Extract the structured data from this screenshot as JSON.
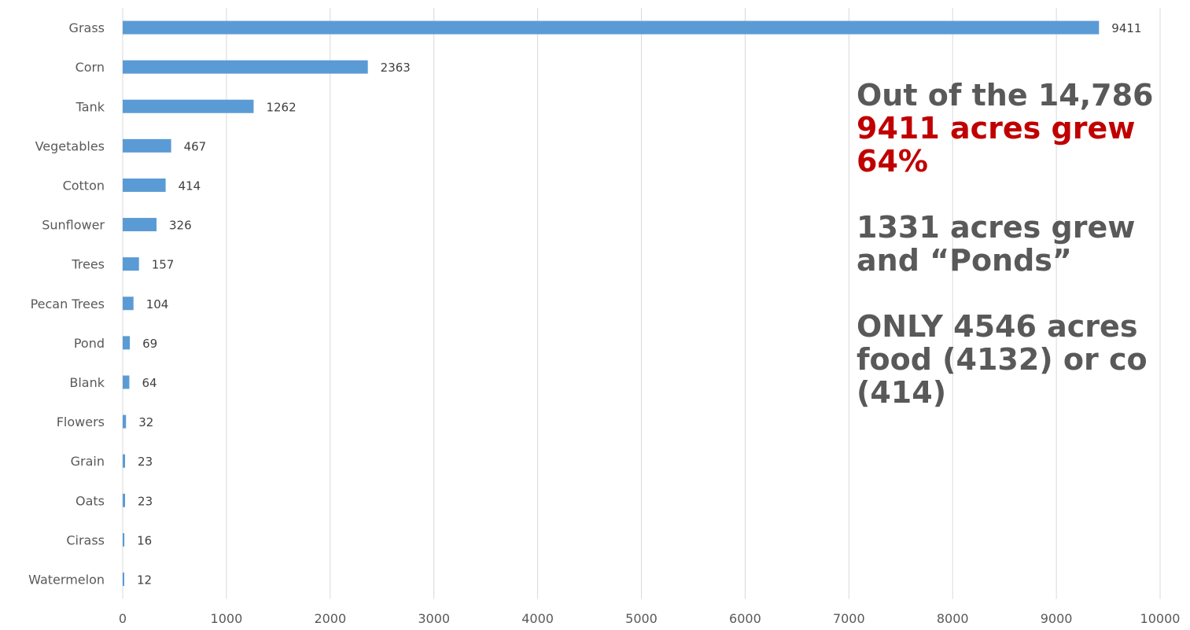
{
  "chart_data": {
    "type": "bar",
    "orientation": "horizontal",
    "categories": [
      "Grass",
      "Corn",
      "Tank",
      "Vegetables",
      "Cotton",
      "Sunflower",
      "Trees",
      "Pecan Trees",
      "Pond",
      "Blank",
      "Flowers",
      "Grain",
      "Oats",
      "Cirass",
      "Watermelon"
    ],
    "values": [
      9411,
      2363,
      1262,
      467,
      414,
      326,
      157,
      104,
      69,
      64,
      32,
      23,
      23,
      16,
      12
    ],
    "xlim": [
      0,
      10000
    ],
    "x_ticks": [
      0,
      1000,
      2000,
      3000,
      4000,
      5000,
      6000,
      7000,
      8000,
      9000,
      10000
    ],
    "grid": "vertical",
    "bar_color": "#5b9bd5",
    "data_labels": true
  },
  "annotation": {
    "line1": "Out of the 14,786",
    "line2": "9411 acres grew",
    "line3": "64%",
    "line4": "1331 acres grew",
    "line5": "and “Ponds”",
    "line6": "ONLY 4546 acres",
    "line7": "food (4132) or co",
    "line8": "(414)",
    "highlight_color": "#c00000"
  }
}
